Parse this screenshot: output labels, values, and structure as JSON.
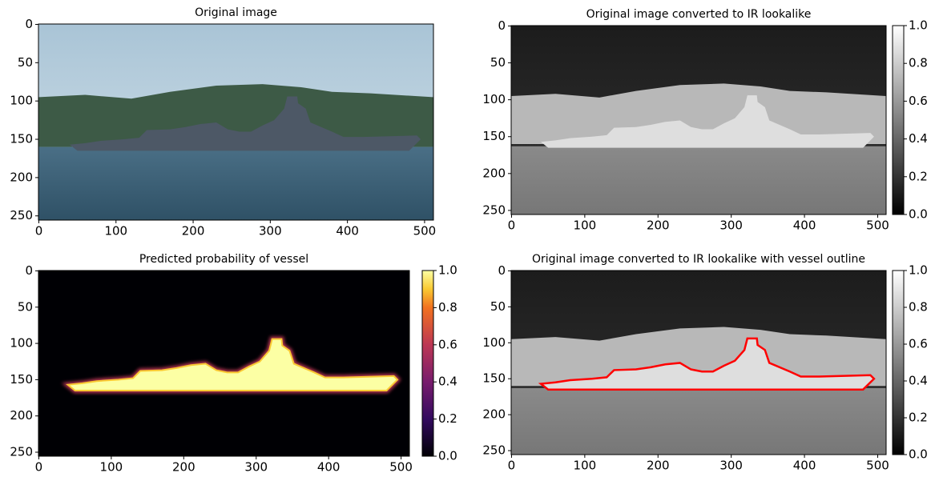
{
  "chart_data": [
    {
      "type": "image",
      "title": "Original image",
      "xlim": [
        -0.5,
        511.5
      ],
      "ylim": [
        255.5,
        -0.5
      ],
      "xticks": [
        0,
        100,
        200,
        300,
        400,
        500
      ],
      "yticks": [
        0,
        50,
        100,
        150,
        200,
        250
      ]
    },
    {
      "type": "image",
      "title": "Original image converted to IR lookalike",
      "xlim": [
        -0.5,
        511.5
      ],
      "ylim": [
        255.5,
        -0.5
      ],
      "xticks": [
        0,
        100,
        200,
        300,
        400,
        500
      ],
      "yticks": [
        0,
        50,
        100,
        150,
        200,
        250
      ],
      "colormap": "gray",
      "clim": [
        0,
        1
      ],
      "cticks": [
        {
          "value": 0,
          "label": "0.0"
        },
        0.2,
        0.4,
        0.6,
        0.8,
        {
          "value": 1,
          "label": "1.0"
        }
      ]
    },
    {
      "type": "image",
      "title": "Predicted probability of vessel",
      "xlim": [
        -0.5,
        511.5
      ],
      "ylim": [
        255.5,
        -0.5
      ],
      "xticks": [
        0,
        100,
        200,
        300,
        400,
        500
      ],
      "yticks": [
        0,
        50,
        100,
        150,
        200,
        250
      ],
      "colormap": "inferno",
      "clim": [
        0,
        1
      ],
      "cticks": [
        {
          "value": 0,
          "label": "0.0"
        },
        0.2,
        0.4,
        0.6,
        0.8,
        {
          "value": 1,
          "label": "1.0"
        }
      ]
    },
    {
      "type": "image",
      "title": "Original image converted to IR lookalike with vessel outline",
      "xlim": [
        -0.5,
        511.5
      ],
      "ylim": [
        255.5,
        -0.5
      ],
      "xticks": [
        0,
        100,
        200,
        300,
        400,
        500
      ],
      "yticks": [
        0,
        50,
        100,
        150,
        200,
        250
      ],
      "colormap": "gray",
      "clim": [
        0,
        1
      ],
      "outline_color": "#ff0000",
      "cticks": [
        {
          "value": 0,
          "label": "0.0"
        },
        0.2,
        0.4,
        0.6,
        0.8,
        {
          "value": 1,
          "label": "1.0"
        }
      ]
    }
  ]
}
